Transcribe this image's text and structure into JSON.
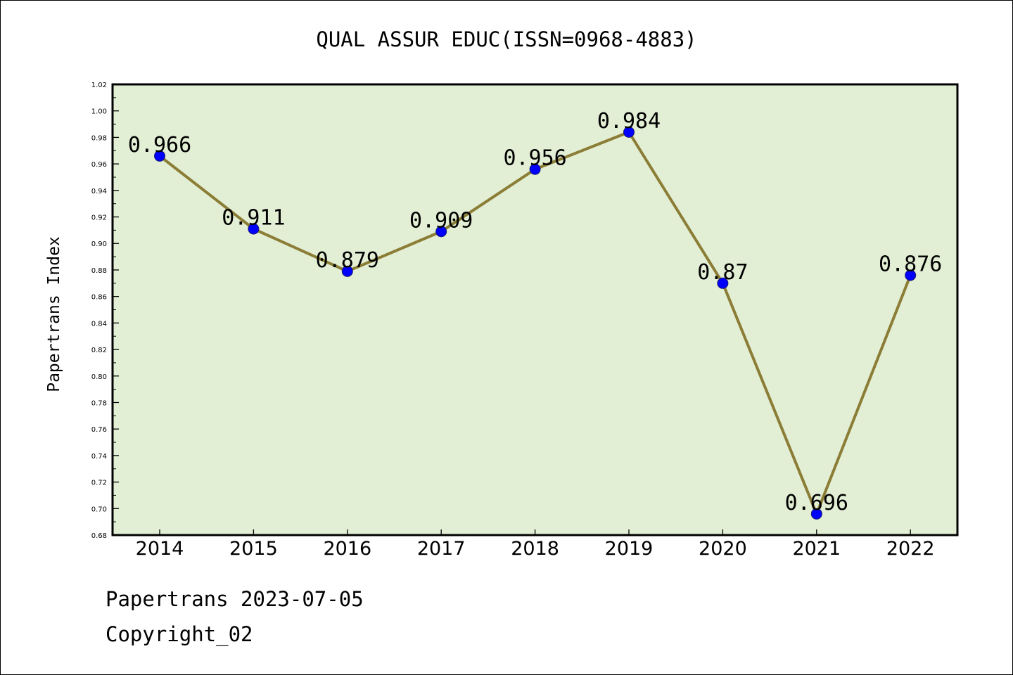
{
  "chart_data": {
    "type": "line",
    "title": "QUAL ASSUR EDUC(ISSN=0968-4883)",
    "xlabel": "",
    "ylabel": "Papertrans Index",
    "categories": [
      "2014",
      "2015",
      "2016",
      "2017",
      "2018",
      "2019",
      "2020",
      "2021",
      "2022"
    ],
    "series": [
      {
        "values": [
          0.966,
          0.911,
          0.879,
          0.909,
          0.956,
          0.984,
          0.87,
          0.696,
          0.876
        ],
        "data_labels": [
          "0.966",
          "0.911",
          "0.879",
          "0.909",
          "0.956",
          "0.984",
          "0.87",
          "0.696",
          "0.876"
        ]
      }
    ],
    "ylim": [
      0.68,
      1.02
    ],
    "yticks": [
      "0.68",
      "0.70",
      "0.72",
      "0.74",
      "0.76",
      "0.78",
      "0.80",
      "0.82",
      "0.84",
      "0.86",
      "0.88",
      "0.90",
      "0.92",
      "0.94",
      "0.96",
      "0.98",
      "1.00",
      "1.02"
    ],
    "grid": false,
    "legend": "none",
    "colors": {
      "plot_background": "#e2efd5",
      "line": "#8b7d35",
      "marker": "#0000ff"
    }
  },
  "footer": {
    "line1": "Papertrans 2023-07-05",
    "line2": "Copyright_02"
  }
}
